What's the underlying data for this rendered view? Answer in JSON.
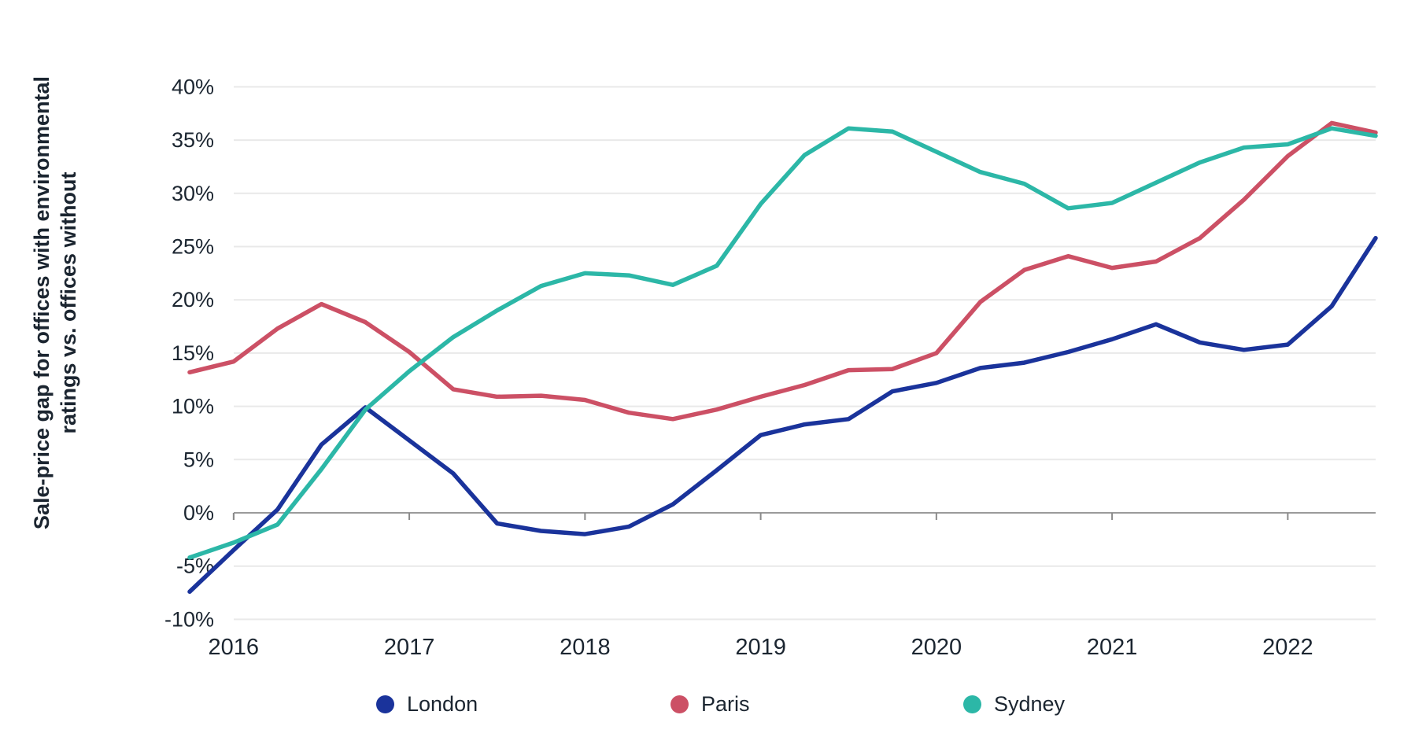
{
  "chart_data": {
    "type": "line",
    "title": "",
    "ylabel": "Sale-price gap for offices with environmental ratings vs. offices without",
    "ylabel_lines": [
      "Sale-price gap for offices with environmental",
      "ratings vs. offices without"
    ],
    "xlabel": "",
    "ylim": [
      -10,
      40
    ],
    "grid": "horizontal",
    "legend_position": "bottom",
    "y_ticks": [
      {
        "value": 40,
        "label": "40%"
      },
      {
        "value": 35,
        "label": "35%"
      },
      {
        "value": 30,
        "label": "30%"
      },
      {
        "value": 25,
        "label": "25%"
      },
      {
        "value": 20,
        "label": "20%"
      },
      {
        "value": 15,
        "label": "15%"
      },
      {
        "value": 10,
        "label": "10%"
      },
      {
        "value": 5,
        "label": "5%"
      },
      {
        "value": 0,
        "label": "0%"
      },
      {
        "value": -5,
        "label": "-5%"
      },
      {
        "value": -10,
        "label": "-10%"
      }
    ],
    "x_year_ticks": [
      {
        "index": 1,
        "label": "2016"
      },
      {
        "index": 5,
        "label": "2017"
      },
      {
        "index": 9,
        "label": "2018"
      },
      {
        "index": 13,
        "label": "2019"
      },
      {
        "index": 17,
        "label": "2020"
      },
      {
        "index": 21,
        "label": "2021"
      },
      {
        "index": 25,
        "label": "2022"
      }
    ],
    "x": [
      "2016 Q1",
      "2016 Q2",
      "2016 Q3",
      "2016 Q4",
      "2017 Q1",
      "2017 Q2",
      "2017 Q3",
      "2017 Q4",
      "2018 Q1",
      "2018 Q2",
      "2018 Q3",
      "2018 Q4",
      "2019 Q1",
      "2019 Q2",
      "2019 Q3",
      "2019 Q4",
      "2020 Q1",
      "2020 Q2",
      "2020 Q3",
      "2020 Q4",
      "2021 Q1",
      "2021 Q2",
      "2021 Q3",
      "2021 Q4",
      "2022 Q1",
      "2022 Q2",
      "2022 Q3",
      "2022 Q4"
    ],
    "series": [
      {
        "name": "London",
        "color": "#1a339b",
        "values": [
          -7.4,
          -3.5,
          0.3,
          6.4,
          9.9,
          6.8,
          3.7,
          -1.0,
          -1.7,
          -2.0,
          -1.3,
          0.8,
          4.0,
          7.3,
          8.3,
          8.8,
          11.4,
          12.2,
          13.6,
          14.1,
          15.1,
          16.3,
          17.7,
          16.0,
          15.3,
          15.8,
          19.4,
          25.8
        ]
      },
      {
        "name": "Paris",
        "color": "#cc5065",
        "values": [
          13.2,
          14.2,
          17.3,
          19.6,
          17.9,
          15.1,
          11.6,
          10.9,
          11.0,
          10.6,
          9.4,
          8.8,
          9.7,
          10.9,
          12.0,
          13.4,
          13.5,
          15.0,
          19.8,
          22.8,
          24.1,
          23.0,
          23.6,
          25.8,
          29.4,
          33.5,
          36.6,
          35.7
        ]
      },
      {
        "name": "Sydney",
        "color": "#2cb7a7",
        "values": [
          -4.2,
          -2.8,
          -1.1,
          4.1,
          9.7,
          13.3,
          16.5,
          19.0,
          21.3,
          22.5,
          22.3,
          21.4,
          23.2,
          29.0,
          33.6,
          36.1,
          35.8,
          33.9,
          32.0,
          30.9,
          28.6,
          29.1,
          31.0,
          32.9,
          34.3,
          34.6,
          36.1,
          35.4
        ]
      }
    ],
    "colors": {
      "gridline": "#e9e9e9",
      "zero_axis": "#9b9b9b",
      "tick": "#8a8a8a",
      "text": "#1b2530"
    }
  },
  "legend": {
    "items": [
      {
        "label": "London",
        "color": "#1a339b"
      },
      {
        "label": "Paris",
        "color": "#cc5065"
      },
      {
        "label": "Sydney",
        "color": "#2cb7a7"
      }
    ]
  }
}
